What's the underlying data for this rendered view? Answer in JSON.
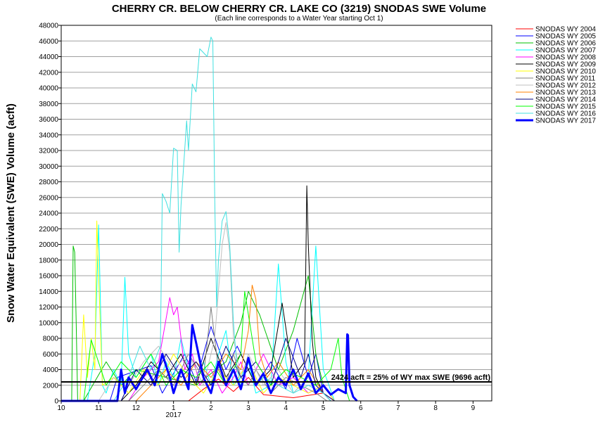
{
  "chart_data": {
    "type": "line",
    "title": "CHERRY CR. BELOW CHERRY CR. LAKE CO (3219) SNODAS SWE Volume",
    "subtitle": "(Each line corresponds to a Water Year starting Oct 1)",
    "ylabel": "Snow Water Equivalent (SWE) Volume (acft)",
    "xlabel": "",
    "ylim": [
      0,
      48000
    ],
    "xlim": [
      0,
      11.5
    ],
    "yticks": [
      "0",
      "2000",
      "4000",
      "6000",
      "8000",
      "10000",
      "12000",
      "14000",
      "16000",
      "18000",
      "20000",
      "22000",
      "24000",
      "26000",
      "28000",
      "30000",
      "32000",
      "34000",
      "36000",
      "38000",
      "40000",
      "42000",
      "44000",
      "46000",
      "48000"
    ],
    "xticks": [
      {
        "label": "10",
        "x": 0
      },
      {
        "label": "11",
        "x": 1
      },
      {
        "label": "12",
        "x": 2
      },
      {
        "label": "1",
        "x": 3
      },
      {
        "label": "2",
        "x": 4
      },
      {
        "label": "3",
        "x": 5
      },
      {
        "label": "4",
        "x": 6
      },
      {
        "label": "5",
        "x": 7
      },
      {
        "label": "6",
        "x": 8
      },
      {
        "label": "7",
        "x": 9
      },
      {
        "label": "8",
        "x": 10
      },
      {
        "label": "9",
        "x": 11
      }
    ],
    "year_label": {
      "label": "2017",
      "x": 3
    },
    "grid": true,
    "legend_position": "right",
    "threshold": {
      "value": 2424,
      "label": "2424 acft = 25% of WY max SWE (9696 acft)"
    },
    "series": [
      {
        "name": "SNODAS WY 2004",
        "color": "#ff0000",
        "width": 1,
        "x": [
          0,
          3.4,
          3.8,
          4.2,
          4.6,
          5.0,
          5.4,
          6.2,
          7.0,
          7.3
        ],
        "y": [
          0,
          0,
          1500,
          2800,
          1200,
          3000,
          800,
          400,
          1000,
          0
        ]
      },
      {
        "name": "SNODAS WY 2005",
        "color": "#0000ff",
        "width": 1,
        "x": [
          0,
          1.3,
          1.5,
          2.4,
          2.7,
          3.3,
          3.6,
          4.0,
          4.4,
          4.7,
          5.2,
          5.6,
          6.0,
          6.3,
          6.6,
          6.8,
          7.0,
          7.2
        ],
        "y": [
          0,
          0,
          3000,
          4500,
          1000,
          6000,
          2500,
          9500,
          4000,
          7000,
          2000,
          5000,
          1500,
          8000,
          3000,
          6000,
          1000,
          0
        ]
      },
      {
        "name": "SNODAS WY 2006",
        "color": "#00c000",
        "width": 1,
        "x": [
          0,
          0.28,
          0.32,
          0.36,
          0.4,
          0.44,
          0.6,
          1.2,
          1.6,
          2.0,
          2.8,
          3.6,
          4.4,
          4.8,
          5.0,
          5.3,
          5.8,
          6.2,
          6.6,
          6.8,
          7.0,
          7.3
        ],
        "y": [
          0,
          0,
          19800,
          19000,
          10000,
          0,
          0,
          5000,
          2000,
          4000,
          3000,
          2000,
          5000,
          10000,
          14000,
          11000,
          4000,
          9000,
          16000,
          6000,
          2000,
          0
        ]
      },
      {
        "name": "SNODAS WY 2007",
        "color": "#00ffff",
        "width": 1,
        "x": [
          0,
          0.7,
          0.8,
          0.9,
          1.0,
          1.1,
          1.2,
          1.4,
          1.6,
          1.7,
          1.8,
          2.0,
          2.4,
          2.6,
          2.8,
          3.0,
          3.2,
          3.4,
          3.6,
          3.8,
          4.0,
          4.2,
          4.4,
          4.6,
          4.8,
          5.0,
          5.2,
          5.6,
          5.8,
          6.0,
          6.2,
          6.6,
          6.8,
          7.0,
          7.3
        ],
        "y": [
          0,
          0,
          3000,
          6000,
          22500,
          2000,
          1000,
          4000,
          2000,
          15800,
          6000,
          3000,
          6000,
          2000,
          5000,
          3000,
          8000,
          4000,
          2000,
          5000,
          2000,
          6000,
          9000,
          2000,
          3000,
          5000,
          1000,
          2000,
          17500,
          5000,
          1000,
          3000,
          19800,
          4000,
          0
        ]
      },
      {
        "name": "SNODAS WY 2008",
        "color": "#ff00ff",
        "width": 1,
        "x": [
          0,
          1.8,
          2.2,
          2.6,
          2.9,
          3.0,
          3.1,
          3.3,
          3.5,
          3.7,
          4.0,
          4.3,
          4.6,
          4.8,
          5.0,
          5.4,
          5.8,
          6.2,
          6.6,
          7.0,
          7.3
        ],
        "y": [
          0,
          0,
          3000,
          5000,
          13200,
          11000,
          12000,
          4000,
          6000,
          2000,
          4000,
          1000,
          3000,
          5000,
          2000,
          6000,
          2000,
          3000,
          1000,
          2000,
          0
        ]
      },
      {
        "name": "SNODAS WY 2009",
        "color": "#000000",
        "width": 1,
        "x": [
          0,
          1.6,
          2.0,
          2.4,
          2.8,
          3.2,
          3.6,
          4.0,
          4.4,
          4.8,
          5.2,
          5.6,
          5.9,
          6.2,
          6.5,
          6.56,
          6.6,
          6.7,
          6.8,
          7.0,
          7.2
        ],
        "y": [
          0,
          0,
          2000,
          5000,
          3000,
          6000,
          2000,
          8000,
          3000,
          6000,
          2000,
          4000,
          12500,
          3000,
          5000,
          27500,
          20000,
          8000,
          3000,
          1000,
          0
        ]
      },
      {
        "name": "SNODAS WY 2010",
        "color": "#ffff00",
        "width": 1,
        "x": [
          0,
          0.5,
          0.6,
          0.7,
          0.8,
          0.9,
          0.95,
          1.0,
          1.1,
          1.4,
          1.8,
          2.2,
          2.6,
          3.0,
          3.4,
          3.8,
          4.2,
          4.6,
          5.0,
          5.4,
          5.8,
          6.2,
          6.6,
          7.0,
          7.3
        ],
        "y": [
          0,
          0,
          11000,
          3000,
          8000,
          4000,
          23000,
          16000,
          2000,
          3000,
          1000,
          4000,
          2000,
          6000,
          3000,
          1000,
          4000,
          2000,
          5000,
          1000,
          3000,
          2000,
          1000,
          2000,
          0
        ]
      },
      {
        "name": "SNODAS WY 2011",
        "color": "#808080",
        "width": 1,
        "x": [
          0,
          1.8,
          2.2,
          2.6,
          3.0,
          3.4,
          3.8,
          4.0,
          4.2,
          4.4,
          4.6,
          4.8,
          5.0,
          5.2,
          5.6,
          6.0,
          6.4,
          6.8,
          7.1
        ],
        "y": [
          0,
          0,
          2000,
          4000,
          2000,
          6000,
          3000,
          12000,
          4000,
          2000,
          6000,
          3000,
          2000,
          4000,
          1000,
          3000,
          2000,
          1000,
          0
        ]
      },
      {
        "name": "SNODAS WY 2012",
        "color": "#c0c0c0",
        "width": 1,
        "x": [
          0,
          1.0,
          1.4,
          1.8,
          2.2,
          2.6,
          3.0,
          3.4,
          3.8,
          4.1,
          4.2,
          4.3,
          4.4,
          4.5,
          4.6,
          4.8,
          5.0,
          5.4,
          5.8,
          6.2,
          6.6,
          7.0,
          7.2
        ],
        "y": [
          0,
          0,
          3000,
          2000,
          5000,
          7000,
          4000,
          6000,
          2000,
          8000,
          14000,
          20000,
          22800,
          19000,
          8000,
          3000,
          6000,
          2000,
          4000,
          1000,
          3000,
          1000,
          0
        ]
      },
      {
        "name": "SNODAS WY 2013",
        "color": "#ff8000",
        "width": 1,
        "x": [
          0,
          2.0,
          2.4,
          2.8,
          3.2,
          3.6,
          4.0,
          4.4,
          4.8,
          5.0,
          5.1,
          5.2,
          5.3,
          5.5,
          5.8,
          6.2,
          6.6,
          7.0,
          7.3
        ],
        "y": [
          0,
          0,
          2000,
          4000,
          2000,
          5000,
          3000,
          6000,
          4000,
          9000,
          14800,
          13000,
          6000,
          3000,
          5000,
          2000,
          4000,
          1000,
          0
        ]
      },
      {
        "name": "SNODAS WY 2014",
        "color": "#000080",
        "width": 1,
        "x": [
          0,
          1.6,
          2.0,
          2.4,
          2.8,
          3.2,
          3.6,
          4.0,
          4.4,
          4.8,
          5.2,
          5.6,
          6.0,
          6.4,
          6.6,
          6.8,
          7.0,
          7.3
        ],
        "y": [
          0,
          0,
          4000,
          2000,
          6000,
          3000,
          5000,
          2000,
          7000,
          3000,
          5000,
          2000,
          8000,
          3000,
          6000,
          2000,
          1000,
          0
        ]
      },
      {
        "name": "SNODAS WY 2015",
        "color": "#00ff00",
        "width": 1,
        "x": [
          0,
          0.6,
          0.8,
          1.2,
          1.6,
          2.0,
          2.4,
          2.8,
          3.2,
          3.6,
          4.0,
          4.4,
          4.8,
          4.9,
          5.0,
          5.2,
          5.6,
          6.0,
          6.4,
          6.8,
          7.2,
          7.4,
          7.5,
          7.7
        ],
        "y": [
          0,
          0,
          7800,
          2000,
          5000,
          3000,
          6000,
          2000,
          4000,
          3000,
          5000,
          2000,
          6000,
          14000,
          11000,
          5000,
          2000,
          4000,
          3000,
          2000,
          4000,
          8000,
          3000,
          0
        ]
      },
      {
        "name": "SNODAS WY 2016",
        "color": "#40e0e0",
        "width": 1,
        "x": [
          0,
          1.4,
          1.8,
          2.1,
          2.4,
          2.65,
          2.7,
          2.8,
          2.9,
          3.0,
          3.1,
          3.15,
          3.2,
          3.35,
          3.4,
          3.5,
          3.6,
          3.7,
          3.8,
          3.9,
          4.0,
          4.05,
          4.1,
          4.15,
          4.2,
          4.3,
          4.4,
          4.5,
          4.6,
          4.7,
          4.8,
          5.0,
          5.2,
          5.4,
          5.8,
          6.2,
          6.6,
          7.0,
          7.2
        ],
        "y": [
          0,
          0,
          3000,
          7000,
          4000,
          7000,
          26500,
          25500,
          24000,
          32300,
          32000,
          19000,
          25000,
          35800,
          32000,
          40500,
          39500,
          45000,
          44500,
          44000,
          46500,
          46000,
          26000,
          12000,
          18000,
          23000,
          24200,
          20000,
          10000,
          4000,
          2000,
          5000,
          2000,
          3000,
          2000,
          1000,
          2000,
          1000,
          0
        ]
      },
      {
        "name": "SNODAS WY 2017",
        "color": "#0000ff",
        "width": 3,
        "x": [
          0,
          1.5,
          1.6,
          1.7,
          1.8,
          2.0,
          2.3,
          2.5,
          2.7,
          2.9,
          3.0,
          3.2,
          3.4,
          3.5,
          3.6,
          3.8,
          4.0,
          4.2,
          4.4,
          4.6,
          4.8,
          5.0,
          5.2,
          5.4,
          5.6,
          5.8,
          6.0,
          6.2,
          6.4,
          6.6,
          6.8,
          7.0,
          7.2,
          7.4,
          7.6,
          7.64,
          7.66,
          7.7,
          7.8,
          7.9
        ],
        "y": [
          0,
          0,
          4000,
          1000,
          3000,
          1500,
          4000,
          2000,
          6000,
          3000,
          1000,
          4000,
          1500,
          9696,
          7500,
          3000,
          1000,
          5000,
          2000,
          4000,
          1500,
          5500,
          2000,
          3500,
          1000,
          3000,
          2000,
          4000,
          1500,
          3500,
          1000,
          2000,
          800,
          1500,
          1000,
          8500,
          8400,
          2000,
          500,
          0
        ]
      }
    ]
  }
}
